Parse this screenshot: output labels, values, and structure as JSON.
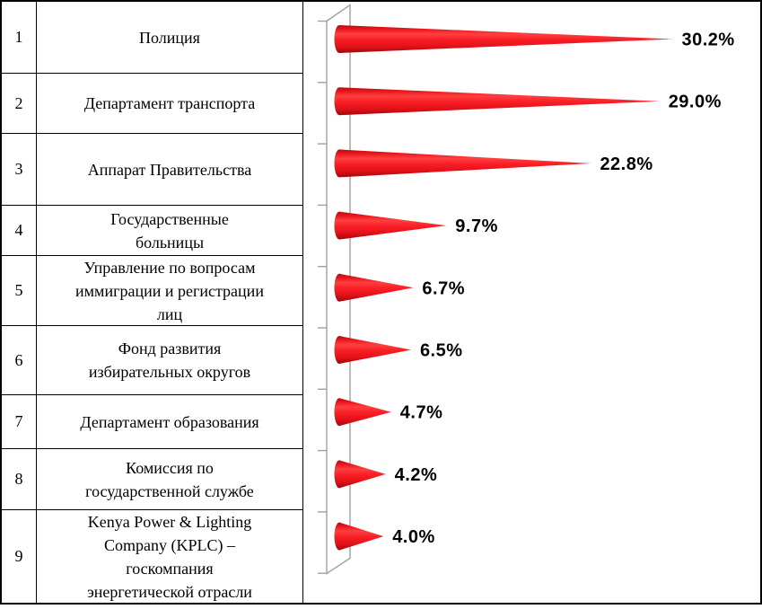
{
  "table": {
    "rows": [
      {
        "num": "1",
        "name": "Полиция"
      },
      {
        "num": "2",
        "name": "Департамент транспорта"
      },
      {
        "num": "3",
        "name": "Аппарат Правительства"
      },
      {
        "num": "4",
        "name": "Государственные\nбольницы"
      },
      {
        "num": "5",
        "name": "Управление по вопросам\nиммиграции и регистрации\nлиц"
      },
      {
        "num": "6",
        "name": "Фонд развития\nизбирательных округов"
      },
      {
        "num": "7",
        "name": "Департамент образования"
      },
      {
        "num": "8",
        "name": "Комиссия по\nгосударственной службе"
      },
      {
        "num": "9",
        "name": "Kenya Power & Lighting\nCompany (KPLC) –\nгоскомпания\nэнергетической отрасли"
      }
    ]
  },
  "chart_data": {
    "type": "bar",
    "orientation": "horizontal",
    "bar_shape": "3d-cone",
    "categories": [
      "Полиция",
      "Департамент транспорта",
      "Аппарат Правительства",
      "Государственные больницы",
      "Управление по вопросам иммиграции и регистрации лиц",
      "Фонд развития избирательных округов",
      "Департамент образования",
      "Комиссия по государственной службе",
      "Kenya Power & Lighting Company (KPLC) – госкомпания энергетической отрасли"
    ],
    "values": [
      30.2,
      29.0,
      22.8,
      9.7,
      6.7,
      6.5,
      4.7,
      4.2,
      4.0
    ],
    "data_labels": [
      "30.2%",
      "29.0%",
      "22.8%",
      "9.7%",
      "6.7%",
      "6.5%",
      "4.7%",
      "4.2%",
      "4.0%"
    ],
    "title": "",
    "xlabel": "",
    "ylabel": "",
    "grid": false,
    "legend": false,
    "bar_color": "#ee1c25",
    "axis_color": "#a0a0a0",
    "label_color": "#000000"
  }
}
